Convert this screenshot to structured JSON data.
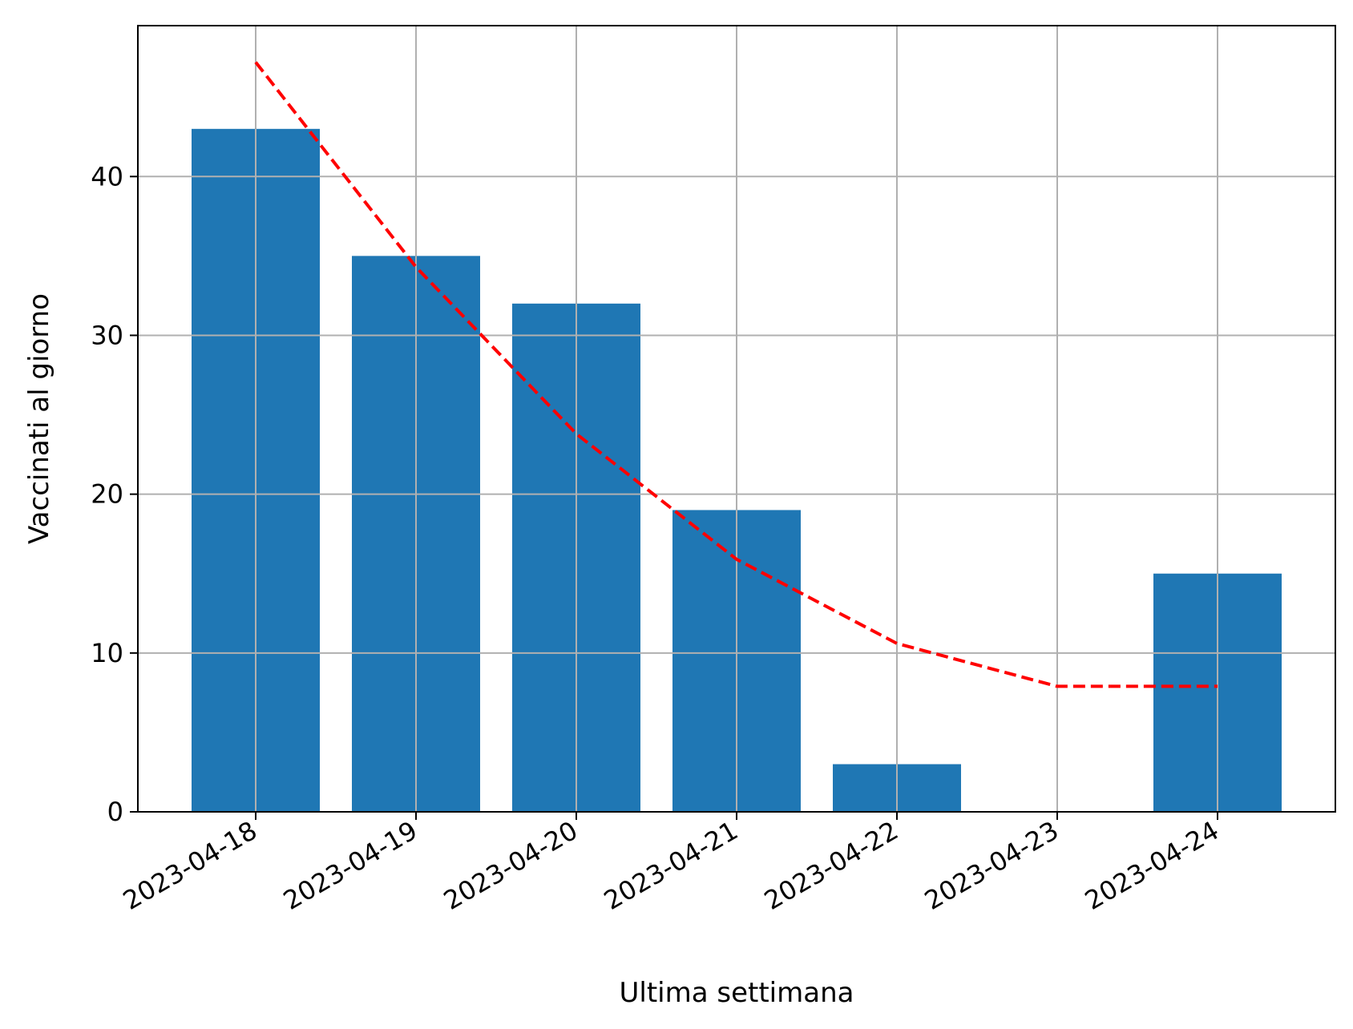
{
  "chart_data": {
    "type": "bar",
    "title": "",
    "xlabel": "Ultima settimana",
    "ylabel": "Vaccinati al giorno",
    "categories": [
      "2023-04-18",
      "2023-04-19",
      "2023-04-20",
      "2023-04-21",
      "2023-04-22",
      "2023-04-23",
      "2023-04-24"
    ],
    "values": [
      43,
      35,
      32,
      19,
      3,
      0,
      15
    ],
    "trend": {
      "style": "dashed",
      "color": "#ff0000",
      "values": [
        47.2,
        34.3,
        23.8,
        15.9,
        10.6,
        7.9,
        7.9
      ]
    },
    "ylim": [
      0,
      49.5
    ],
    "yticks": [
      0,
      10,
      20,
      30,
      40
    ],
    "grid": true,
    "bar_color": "#1f77b4",
    "grid_color": "#b0b0b0"
  }
}
